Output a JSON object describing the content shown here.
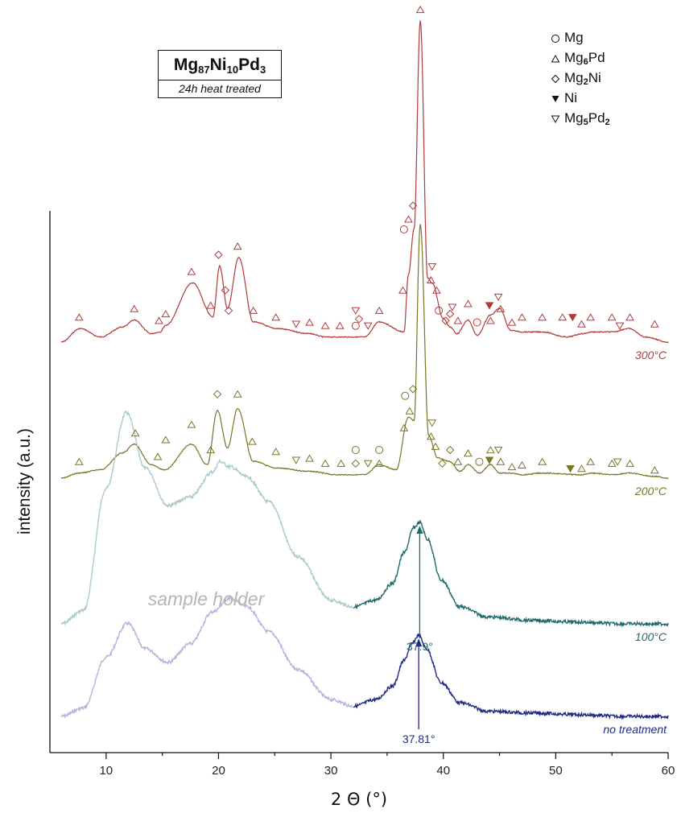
{
  "chart_data": {
    "type": "line",
    "title": "Mg87Ni10Pd3",
    "title_parts": {
      "el1": "Mg",
      "n1": "87",
      "el2": "Ni",
      "n2": "10",
      "el3": "Pd",
      "n3": "3"
    },
    "subtitle": "24h heat treated",
    "xlabel": "2 Θ (°)",
    "ylabel": "intensity (a.u.)",
    "xlim": [
      5,
      60
    ],
    "xticks": [
      10,
      20,
      30,
      40,
      50,
      60
    ],
    "grid": false,
    "legend_position": "top-right",
    "legend": [
      {
        "symbol": "circle",
        "name": "Mg"
      },
      {
        "symbol": "triangle-up",
        "name": "Mg6Pd",
        "parts": [
          "Mg",
          "6",
          "Pd",
          ""
        ]
      },
      {
        "symbol": "diamond",
        "name": "Mg2Ni",
        "parts": [
          "Mg",
          "2",
          "Ni",
          ""
        ]
      },
      {
        "symbol": "triangle-down-filled",
        "name": "Ni"
      },
      {
        "symbol": "triangle-down",
        "name": "Mg5Pd2",
        "parts": [
          "Mg",
          "5",
          "Pd",
          "2"
        ]
      }
    ],
    "series": [
      {
        "name": "300°C",
        "color": "#b13b3b",
        "x": [
          6,
          7.7,
          9.5,
          11.5,
          12.5,
          14,
          14.8,
          15.3,
          17.7,
          19.5,
          20.1,
          20.8,
          21.8,
          23.1,
          25.2,
          28.1,
          29.5,
          31,
          33,
          34.3,
          36.5,
          36.9,
          37.4,
          37.95,
          38.6,
          39.0,
          40.0,
          40.6,
          41.2,
          42.2,
          43.0,
          44.2,
          45.0,
          46.0,
          47.0,
          48.8,
          51.0,
          52.4,
          53.2,
          55.0,
          56.5,
          58.0,
          60
        ],
        "y": [
          0,
          8,
          3,
          9,
          13,
          5,
          6,
          10,
          35,
          15,
          45,
          20,
          50,
          12,
          8,
          5,
          3,
          3,
          3,
          12,
          6,
          40,
          67,
          190,
          38,
          35,
          14,
          9,
          5,
          13,
          4,
          16,
          20,
          7,
          6,
          6,
          3,
          5,
          6,
          6,
          8,
          3,
          0
        ]
      },
      {
        "name": "200°C",
        "color": "#7a7527",
        "x": [
          6,
          7.6,
          9.5,
          11.5,
          12.5,
          14,
          15.2,
          17.6,
          19.0,
          19.9,
          20.8,
          21.7,
          23.1,
          25.1,
          28.1,
          30.5,
          33,
          34.3,
          35.8,
          36.9,
          37.4,
          37.95,
          38.7,
          39.5,
          40.5,
          41.5,
          42.2,
          43.2,
          44.2,
          45.0,
          46.0,
          47.0,
          48.8,
          52.3,
          53.2,
          55.0,
          56.5,
          58.8,
          60
        ],
        "y": [
          0,
          3,
          5,
          15,
          20,
          8,
          5,
          20,
          8,
          40,
          18,
          41,
          10,
          6,
          4,
          2,
          2,
          8,
          5,
          36,
          34,
          150,
          25,
          12,
          10,
          4,
          8,
          3,
          8,
          3,
          3,
          2,
          3,
          2,
          3,
          2,
          3,
          1,
          0
        ]
      },
      {
        "name": "100°C",
        "color": "#1f6b6b",
        "segments": [
          {
            "x_to": 32,
            "color": "#a9ccc7",
            "label": "sample holder"
          }
        ],
        "x": [
          6,
          8,
          10,
          11.8,
          13.5,
          15.5,
          17.5,
          19.5,
          20.1,
          21,
          22.5,
          24.5,
          27,
          30,
          32,
          34,
          35.5,
          36.5,
          37.4,
          37.9,
          38.6,
          39.8,
          41.5,
          44,
          48,
          52,
          56,
          60
        ],
        "y": [
          0,
          8,
          80,
          125,
          92,
          70,
          75,
          90,
          96,
          93,
          87,
          72,
          40,
          14,
          10,
          14,
          24,
          42,
          57,
          60,
          50,
          26,
          10,
          4,
          2,
          1,
          0,
          0
        ],
        "peak_label": "37.9°",
        "peak_x": 37.9
      },
      {
        "name": "no treatment",
        "color": "#1f2a80",
        "segments": [
          {
            "x_to": 32,
            "color": "#b7b3db",
            "label": "sample holder"
          }
        ],
        "x": [
          6,
          8,
          10,
          11.9,
          13.5,
          15.5,
          17.5,
          19.5,
          21,
          22.5,
          24.5,
          27,
          30,
          32,
          34,
          35.5,
          36.5,
          37.2,
          37.8,
          38.5,
          39.8,
          41.5,
          44,
          48,
          52,
          56,
          60
        ],
        "y": [
          0,
          5,
          35,
          55,
          40,
          32,
          43,
          62,
          70,
          65,
          50,
          28,
          10,
          6,
          10,
          18,
          33,
          43,
          48,
          40,
          20,
          8,
          3,
          2,
          1,
          0,
          0
        ],
        "peak_label": "37.81°",
        "peak_x": 37.81
      }
    ],
    "annotations": {
      "sample_holder_label": "sample holder",
      "markers_300": [
        {
          "x": 7.6,
          "y": 8,
          "m": "tri"
        },
        {
          "x": 12.5,
          "y": 13,
          "m": "tri"
        },
        {
          "x": 14.7,
          "y": 6,
          "m": "tri"
        },
        {
          "x": 15.3,
          "y": 10,
          "m": "tri"
        },
        {
          "x": 17.6,
          "y": 35,
          "m": "tri"
        },
        {
          "x": 19.3,
          "y": 15,
          "m": "tri"
        },
        {
          "x": 20.0,
          "y": 45,
          "m": "dia"
        },
        {
          "x": 20.6,
          "y": 24,
          "m": "dia"
        },
        {
          "x": 20.9,
          "y": 12,
          "m": "dia"
        },
        {
          "x": 21.7,
          "y": 50,
          "m": "tri"
        },
        {
          "x": 23.1,
          "y": 12,
          "m": "tri"
        },
        {
          "x": 25.1,
          "y": 8,
          "m": "tri"
        },
        {
          "x": 26.9,
          "y": 4,
          "m": "tridn"
        },
        {
          "x": 28.1,
          "y": 5,
          "m": "tri"
        },
        {
          "x": 29.5,
          "y": 3,
          "m": "tri"
        },
        {
          "x": 30.8,
          "y": 3,
          "m": "tri"
        },
        {
          "x": 32.2,
          "y": 3,
          "m": "circ"
        },
        {
          "x": 32.2,
          "y": 12,
          "m": "tridn"
        },
        {
          "x": 32.5,
          "y": 7,
          "m": "dia"
        },
        {
          "x": 33.3,
          "y": 3,
          "m": "tridn"
        },
        {
          "x": 34.3,
          "y": 12,
          "m": "tri"
        },
        {
          "x": 36.4,
          "y": 24,
          "m": "tri"
        },
        {
          "x": 36.5,
          "y": 60,
          "m": "circ"
        },
        {
          "x": 36.9,
          "y": 66,
          "m": "tri"
        },
        {
          "x": 37.3,
          "y": 74,
          "m": "dia"
        },
        {
          "x": 37.95,
          "y": 190,
          "m": "tri"
        },
        {
          "x": 39.0,
          "y": 38,
          "m": "tridn"
        },
        {
          "x": 38.9,
          "y": 30,
          "m": "tri"
        },
        {
          "x": 39.4,
          "y": 24,
          "m": "tri"
        },
        {
          "x": 39.6,
          "y": 12,
          "m": "circ"
        },
        {
          "x": 40.2,
          "y": 6,
          "m": "dia"
        },
        {
          "x": 40.6,
          "y": 10,
          "m": "dia"
        },
        {
          "x": 40.8,
          "y": 14,
          "m": "tridn"
        },
        {
          "x": 41.3,
          "y": 6,
          "m": "tri"
        },
        {
          "x": 42.2,
          "y": 16,
          "m": "tri"
        },
        {
          "x": 43.0,
          "y": 5,
          "m": "circ"
        },
        {
          "x": 44.1,
          "y": 15,
          "m": "ni"
        },
        {
          "x": 44.2,
          "y": 6,
          "m": "tri"
        },
        {
          "x": 44.9,
          "y": 20,
          "m": "tridn"
        },
        {
          "x": 45.1,
          "y": 13,
          "m": "tri"
        },
        {
          "x": 46.1,
          "y": 5,
          "m": "tri"
        },
        {
          "x": 47.0,
          "y": 8,
          "m": "tri"
        },
        {
          "x": 48.8,
          "y": 8,
          "m": "tri"
        },
        {
          "x": 50.6,
          "y": 8,
          "m": "tri"
        },
        {
          "x": 51.5,
          "y": 8,
          "m": "ni"
        },
        {
          "x": 52.3,
          "y": 4,
          "m": "tri"
        },
        {
          "x": 53.1,
          "y": 8,
          "m": "tri"
        },
        {
          "x": 55.0,
          "y": 8,
          "m": "tri"
        },
        {
          "x": 55.7,
          "y": 3,
          "m": "tridn"
        },
        {
          "x": 56.6,
          "y": 8,
          "m": "tri"
        },
        {
          "x": 58.8,
          "y": 4,
          "m": "tri"
        }
      ],
      "markers_200": [
        {
          "x": 7.6,
          "y": 3,
          "m": "tri"
        },
        {
          "x": 12.6,
          "y": 20,
          "m": "tri"
        },
        {
          "x": 14.6,
          "y": 6,
          "m": "tri"
        },
        {
          "x": 15.3,
          "y": 16,
          "m": "tri"
        },
        {
          "x": 17.6,
          "y": 25,
          "m": "tri"
        },
        {
          "x": 19.3,
          "y": 10,
          "m": "tri"
        },
        {
          "x": 19.9,
          "y": 43,
          "m": "dia"
        },
        {
          "x": 21.7,
          "y": 43,
          "m": "tri"
        },
        {
          "x": 23.0,
          "y": 15,
          "m": "tri"
        },
        {
          "x": 25.1,
          "y": 9,
          "m": "tri"
        },
        {
          "x": 26.9,
          "y": 4,
          "m": "tridn"
        },
        {
          "x": 28.1,
          "y": 5,
          "m": "tri"
        },
        {
          "x": 29.5,
          "y": 2,
          "m": "tri"
        },
        {
          "x": 30.9,
          "y": 2,
          "m": "tri"
        },
        {
          "x": 32.2,
          "y": 2,
          "m": "dia"
        },
        {
          "x": 32.2,
          "y": 10,
          "m": "circ"
        },
        {
          "x": 33.3,
          "y": 2,
          "m": "tridn"
        },
        {
          "x": 34.3,
          "y": 2,
          "m": "tri"
        },
        {
          "x": 34.3,
          "y": 10,
          "m": "circ"
        },
        {
          "x": 36.5,
          "y": 23,
          "m": "tri"
        },
        {
          "x": 36.6,
          "y": 42,
          "m": "circ"
        },
        {
          "x": 37.0,
          "y": 33,
          "m": "tri"
        },
        {
          "x": 37.3,
          "y": 46,
          "m": "dia"
        },
        {
          "x": 39.0,
          "y": 26,
          "m": "tridn"
        },
        {
          "x": 38.9,
          "y": 18,
          "m": "tri"
        },
        {
          "x": 39.3,
          "y": 12,
          "m": "tri"
        },
        {
          "x": 39.9,
          "y": 2,
          "m": "dia"
        },
        {
          "x": 40.6,
          "y": 10,
          "m": "dia"
        },
        {
          "x": 41.3,
          "y": 3,
          "m": "tri"
        },
        {
          "x": 42.2,
          "y": 8,
          "m": "tri"
        },
        {
          "x": 43.2,
          "y": 3,
          "m": "circ"
        },
        {
          "x": 44.1,
          "y": 4,
          "m": "ni"
        },
        {
          "x": 44.2,
          "y": 10,
          "m": "tri"
        },
        {
          "x": 44.9,
          "y": 10,
          "m": "tridn"
        },
        {
          "x": 45.1,
          "y": 3,
          "m": "tri"
        },
        {
          "x": 46.1,
          "y": 0,
          "m": "tri"
        },
        {
          "x": 47.0,
          "y": 1,
          "m": "tri"
        },
        {
          "x": 48.8,
          "y": 3,
          "m": "tri"
        },
        {
          "x": 51.3,
          "y": -1,
          "m": "ni"
        },
        {
          "x": 52.3,
          "y": -1,
          "m": "tri"
        },
        {
          "x": 53.1,
          "y": 3,
          "m": "tri"
        },
        {
          "x": 55.0,
          "y": 2,
          "m": "tri"
        },
        {
          "x": 55.5,
          "y": 3,
          "m": "tridn"
        },
        {
          "x": 56.6,
          "y": 2,
          "m": "tri"
        },
        {
          "x": 58.8,
          "y": -2,
          "m": "tri"
        }
      ]
    }
  }
}
